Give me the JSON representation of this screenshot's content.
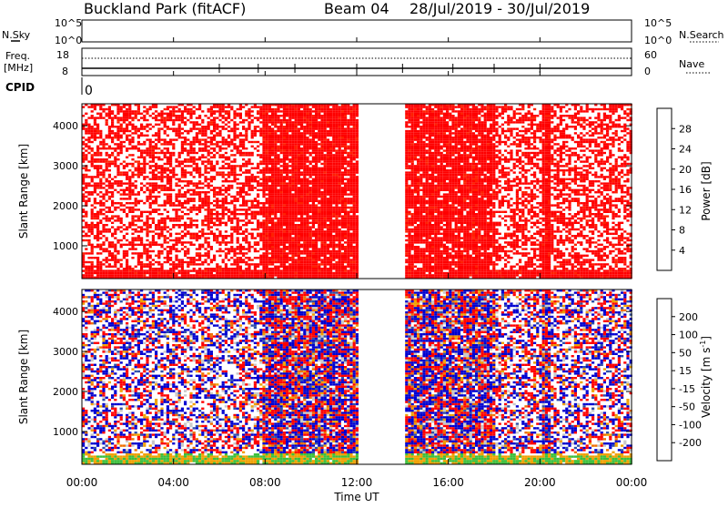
{
  "header": {
    "station": "Buckland Park (fitACF)",
    "beam": "Beam 04",
    "date_range": "28/Jul/2019 - 30/Jul/2019"
  },
  "top_panel": {
    "left_label": "N.Sky",
    "right_label": "N.Search",
    "left_ticks": [
      "10^5",
      "10^0"
    ],
    "right_ticks": [
      "10^5",
      "10^0"
    ]
  },
  "freq_panel": {
    "left_label_1": "Freq.",
    "left_label_2": "[MHz]",
    "left_ticks": [
      "18",
      "8"
    ],
    "right_ticks": [
      "60",
      "0"
    ],
    "right_label": "Nave"
  },
  "cpid": {
    "label": "CPID",
    "value": "0"
  },
  "chart_data": [
    {
      "type": "heatmap",
      "name": "power",
      "ylabel": "Slant Range [km]",
      "xlabel": "Time UT",
      "x_ticks": [
        "00:00",
        "04:00",
        "08:00",
        "12:00",
        "16:00",
        "20:00",
        "00:00"
      ],
      "y_ticks": [
        "1000",
        "2000",
        "3000",
        "4000"
      ],
      "x_range_hours": [
        0,
        24
      ],
      "y_range_km": [
        180,
        4550
      ],
      "data_gap_hours": [
        12.0,
        14.0
      ],
      "colorbar": {
        "label": "Power [dB]",
        "ticks": [
          "4",
          "8",
          "12",
          "16",
          "20",
          "24",
          "28"
        ],
        "colors": [
          "#0000e0",
          "#2f6fa0",
          "#3c9a5a",
          "#7ad03a",
          "#f0c000",
          "#f08000",
          "#ff2000",
          "#ff0000"
        ]
      }
    },
    {
      "type": "heatmap",
      "name": "velocity",
      "ylabel": "Slant Range [km]",
      "xlabel": "Time UT",
      "x_ticks": [
        "00:00",
        "04:00",
        "08:00",
        "12:00",
        "16:00",
        "20:00",
        "00:00"
      ],
      "y_ticks": [
        "1000",
        "2000",
        "3000",
        "4000"
      ],
      "x_range_hours": [
        0,
        24
      ],
      "y_range_km": [
        180,
        4550
      ],
      "data_gap_hours": [
        12.0,
        14.0
      ],
      "colorbar": {
        "label": "Velocity [m s",
        "label_sup": "-1",
        "label_end": "]",
        "ticks": [
          "200",
          "100",
          "50",
          "15",
          "-15",
          "-50",
          "-100",
          "-200"
        ],
        "colors": [
          "#0000d0",
          "#2f4fa8",
          "#3c8a5a",
          "#3cbf3c",
          "#c8c8c8",
          "#f0a000",
          "#f07000",
          "#ff3000",
          "#ff0000"
        ]
      }
    }
  ],
  "x_axis": {
    "label": "Time UT",
    "ticks": [
      "00:00",
      "04:00",
      "08:00",
      "12:00",
      "16:00",
      "20:00",
      "00:00"
    ]
  }
}
